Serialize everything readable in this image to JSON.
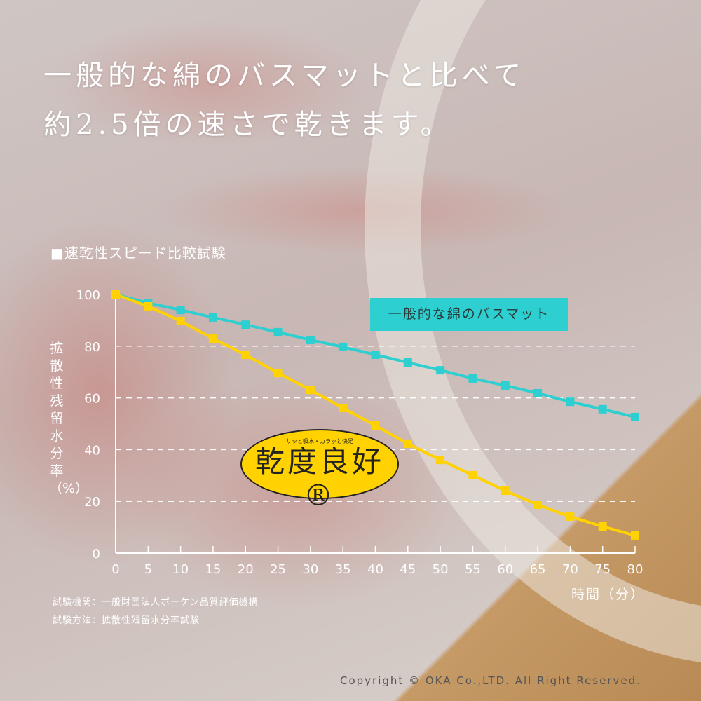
{
  "headline": {
    "line1": "一般的な綿のバスマットと比べて",
    "line2": "約2.5倍の速さで乾きます。"
  },
  "chart_title": "■速乾性スピード比較試験",
  "notes": [
    "試験機関：一般財団法人ボーケン品質評価機構",
    "試験方法：拡散性残留水分率試験"
  ],
  "logo": {
    "tagline": "サッと吸水・カラッと快足",
    "name": "乾度良好®"
  },
  "copyright": "Copyright  © OKA Co.,LTD. All Right Reserved.",
  "chart_data": {
    "type": "line",
    "title": "■速乾性スピード比較試験",
    "xlabel": "時間（分）",
    "ylabel": "拡散性残留水分率（%）",
    "x": [
      0,
      5,
      10,
      15,
      20,
      25,
      30,
      35,
      40,
      45,
      50,
      55,
      60,
      65,
      70,
      75,
      80
    ],
    "xlim": [
      0,
      80
    ],
    "ylim": [
      0,
      100
    ],
    "yticks": [
      0,
      20,
      40,
      60,
      80,
      100
    ],
    "grid": "horizontal dashed",
    "series": [
      {
        "name": "一般的な綿のバスマット",
        "color": "#2ecfd0",
        "values": [
          100,
          96.7,
          94,
          91.1,
          88.3,
          85.4,
          82.4,
          79.7,
          76.7,
          73.7,
          70.7,
          67.5,
          64.8,
          61.8,
          58.5,
          55.6,
          52.6
        ]
      },
      {
        "color": "#ffd200",
        "values": [
          100,
          95.4,
          89.7,
          82.9,
          76.7,
          69.6,
          63.1,
          56.1,
          49.3,
          42.3,
          36,
          30.1,
          24.1,
          18.7,
          14.1,
          10.3,
          6.8
        ]
      }
    ],
    "legend": "top-right"
  }
}
